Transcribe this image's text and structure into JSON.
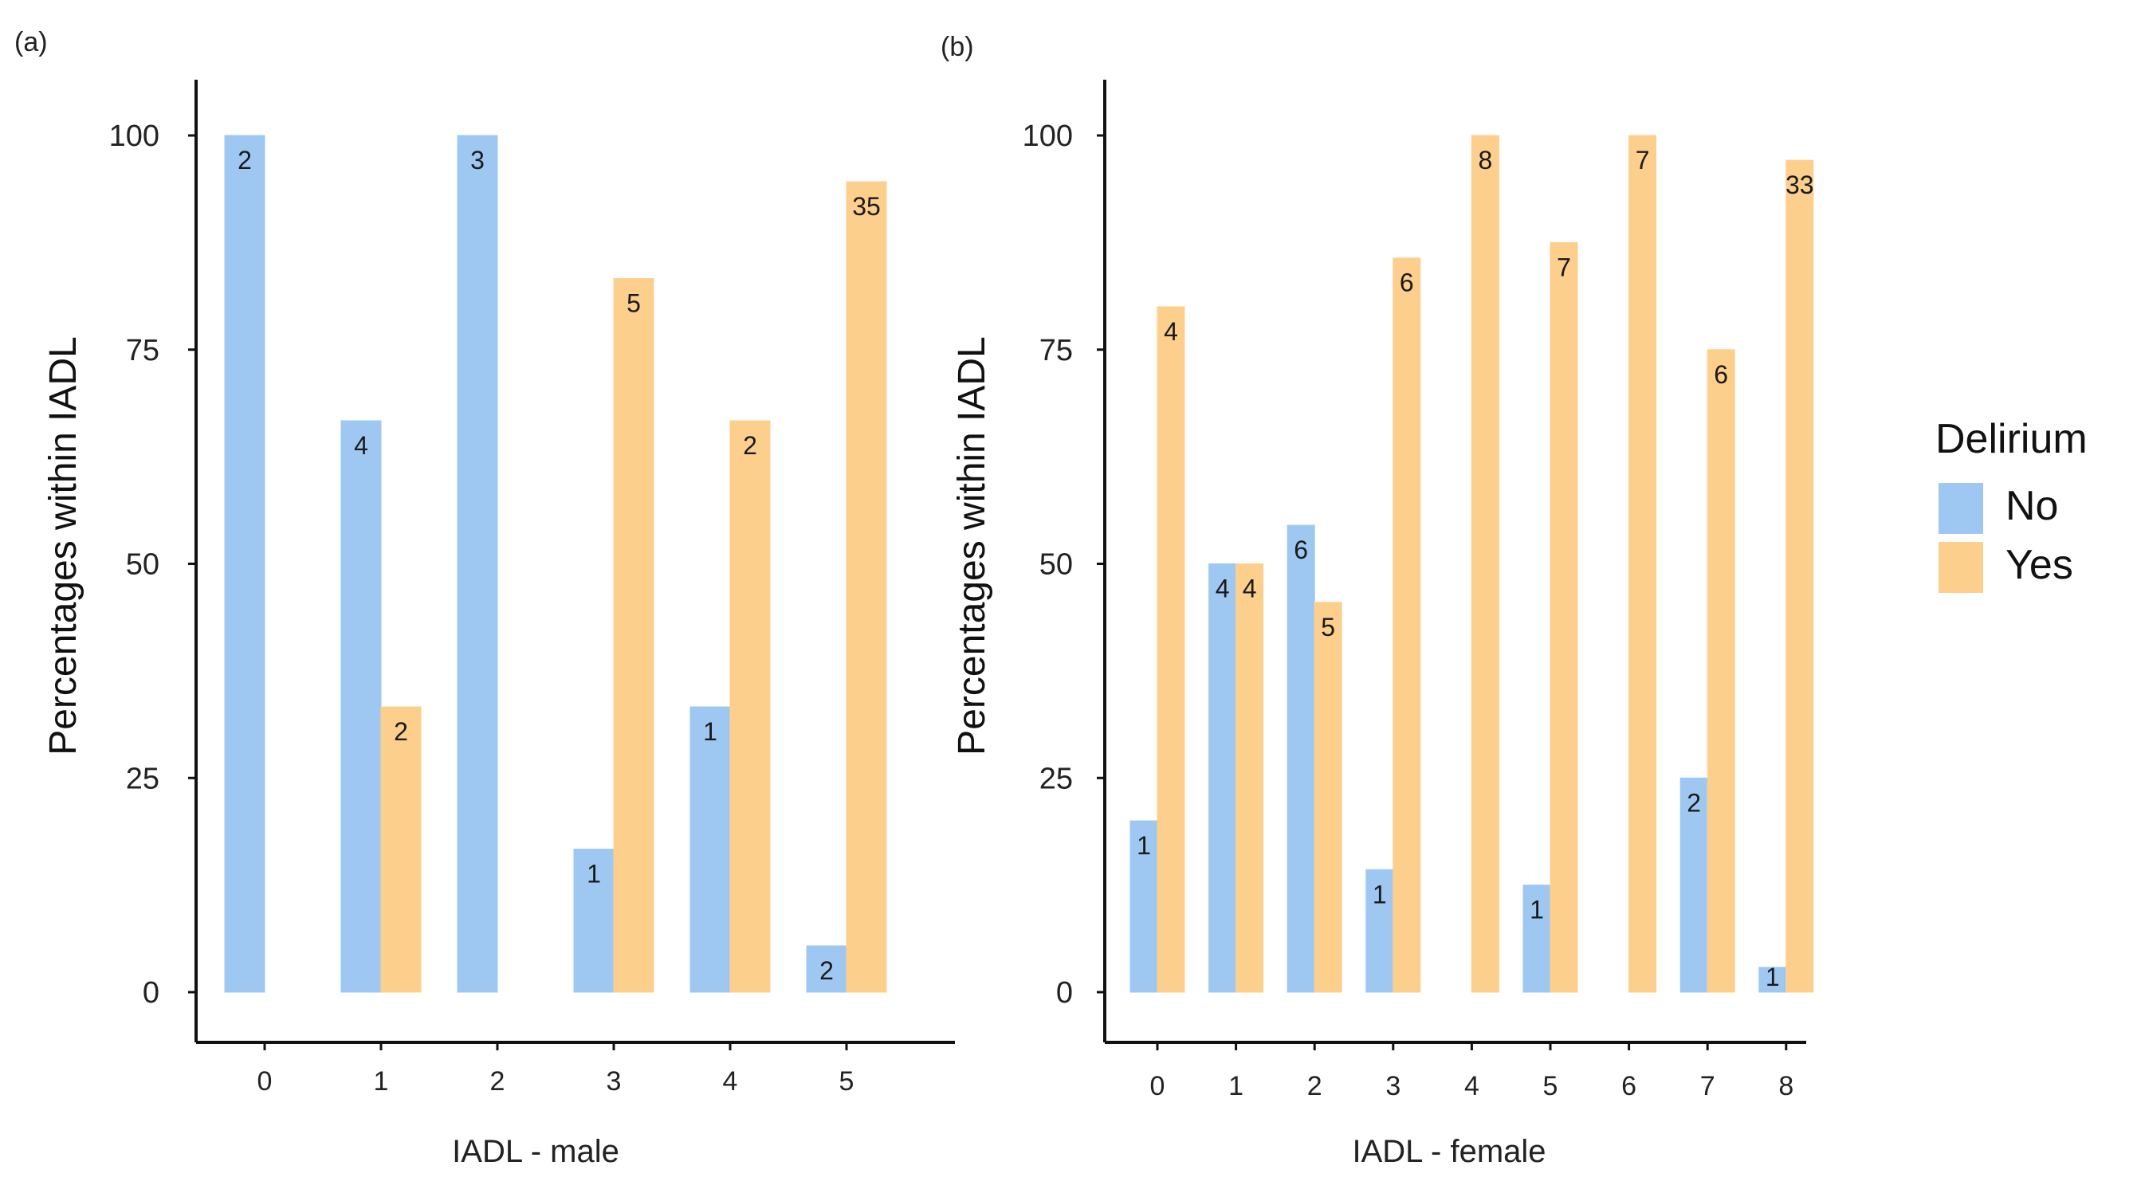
{
  "legend": {
    "title": "Delirium",
    "entries": [
      {
        "label": "No",
        "color": "#9ec8f2"
      },
      {
        "label": "Yes",
        "color": "#fdcf8c"
      }
    ]
  },
  "chart_data": [
    {
      "panel": "(a)",
      "type": "bar",
      "xlabel": "IADL - male",
      "ylabel": "Percentages within IADL",
      "ylim": [
        0,
        100
      ],
      "yticks": [
        0,
        25,
        50,
        75,
        100
      ],
      "categories": [
        "0",
        "1",
        "2",
        "3",
        "4",
        "5"
      ],
      "series": [
        {
          "name": "No",
          "color": "#9ec8f2",
          "values": [
            100,
            66.7,
            100,
            16.7,
            33.3,
            5.4
          ],
          "labels": [
            "2",
            "4",
            "3",
            "1",
            "1",
            "2"
          ]
        },
        {
          "name": "Yes",
          "color": "#fdcf8c",
          "values": [
            null,
            33.3,
            null,
            83.3,
            66.7,
            94.6
          ],
          "labels": [
            null,
            "2",
            null,
            "5",
            "2",
            "35"
          ]
        }
      ]
    },
    {
      "panel": "(b)",
      "type": "bar",
      "xlabel": "IADL - female",
      "ylabel": "Percentages within IADL",
      "ylim": [
        0,
        100
      ],
      "yticks": [
        0,
        25,
        50,
        75,
        100
      ],
      "categories": [
        "0",
        "1",
        "2",
        "3",
        "4",
        "5",
        "6",
        "7",
        "8"
      ],
      "series": [
        {
          "name": "No",
          "color": "#9ec8f2",
          "values": [
            20,
            50,
            54.5,
            14.3,
            null,
            12.5,
            null,
            25,
            2.9
          ],
          "labels": [
            "1",
            "4",
            "6",
            "1",
            null,
            "1",
            null,
            "2",
            "1"
          ]
        },
        {
          "name": "Yes",
          "color": "#fdcf8c",
          "values": [
            80,
            50,
            45.5,
            85.7,
            100,
            87.5,
            100,
            75,
            97.1
          ],
          "labels": [
            "4",
            "4",
            "5",
            "6",
            "8",
            "7",
            "7",
            "6",
            "33"
          ]
        }
      ]
    }
  ]
}
